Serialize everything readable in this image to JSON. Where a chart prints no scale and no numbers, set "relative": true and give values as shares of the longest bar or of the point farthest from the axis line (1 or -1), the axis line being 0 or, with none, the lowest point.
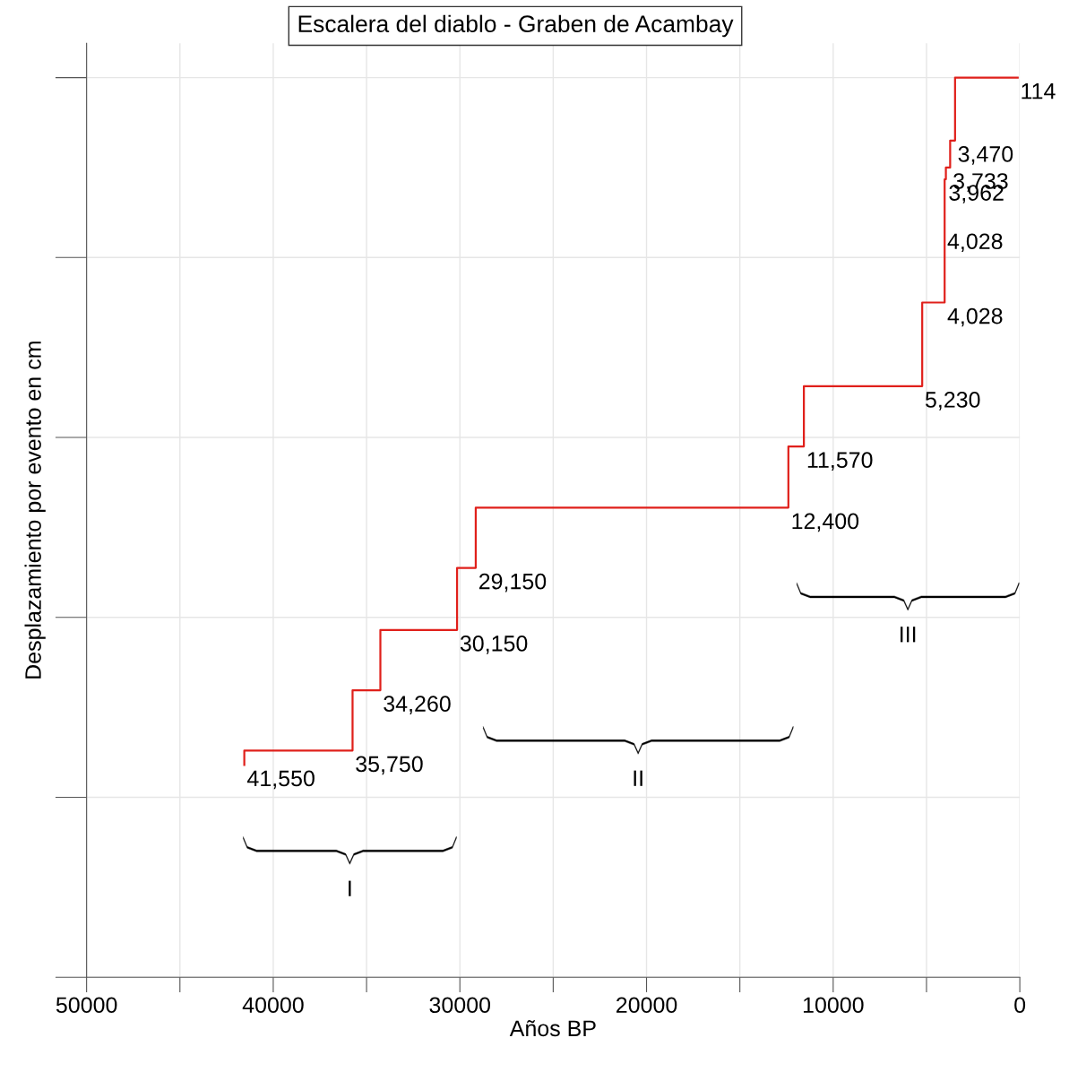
{
  "chart_data": {
    "type": "step",
    "title": "Escalera del diablo - Graben de Acambay",
    "xlabel": "Años BP",
    "ylabel": "Desplazamiento por evento en cm",
    "relative": true,
    "x": [
      41550,
      41550,
      35750,
      34260,
      30150,
      29150,
      12400,
      11570,
      5230,
      4028,
      3962,
      3733,
      3470,
      114
    ],
    "series": [
      {
        "color": "#e0201b",
        "values": [
          0.236,
          0.252,
          0.319,
          0.386,
          0.455,
          0.522,
          0.59,
          0.657,
          0.75,
          0.887,
          0.9,
          0.93,
          1.0,
          1.0
        ]
      }
    ],
    "xlim": [
      50000,
      0
    ],
    "xticks": [
      50000,
      {
        "value": 45000,
        "label": null
      },
      40000,
      {
        "value": 35000,
        "label": null
      },
      30000,
      {
        "value": 25000,
        "label": null
      },
      20000,
      {
        "value": 15000,
        "label": null
      },
      10000,
      {
        "value": 5000,
        "label": null
      },
      0
    ],
    "grid": true,
    "tick_labels": "x",
    "annotations": [
      {
        "text": "41,550",
        "x": 41550,
        "y": 0.236
      },
      {
        "text": "35,750",
        "x": 35750,
        "y": 0.252
      },
      {
        "text": "34,260",
        "x": 34260,
        "y": 0.319
      },
      {
        "text": "30,150",
        "x": 30150,
        "y": 0.386
      },
      {
        "text": "29,150",
        "x": 29150,
        "y": 0.455
      },
      {
        "text": "12,400",
        "x": 12400,
        "y": 0.522
      },
      {
        "text": "11,570",
        "x": 11570,
        "y": 0.59
      },
      {
        "text": "5,230",
        "x": 5230,
        "y": 0.657
      },
      {
        "text": "4,028",
        "x": 4028,
        "y": 0.75
      },
      {
        "text": "4,028",
        "x": 4028,
        "y": 0.833
      },
      {
        "text": "3,962",
        "x": 3962,
        "y": 0.887
      },
      {
        "text": "3,733",
        "x": 3733,
        "y": 0.9
      },
      {
        "text": "3,470",
        "x": 3470,
        "y": 0.93
      },
      {
        "text": "114",
        "x": 114,
        "y": 1.0
      },
      "I",
      "II",
      "III"
    ]
  }
}
